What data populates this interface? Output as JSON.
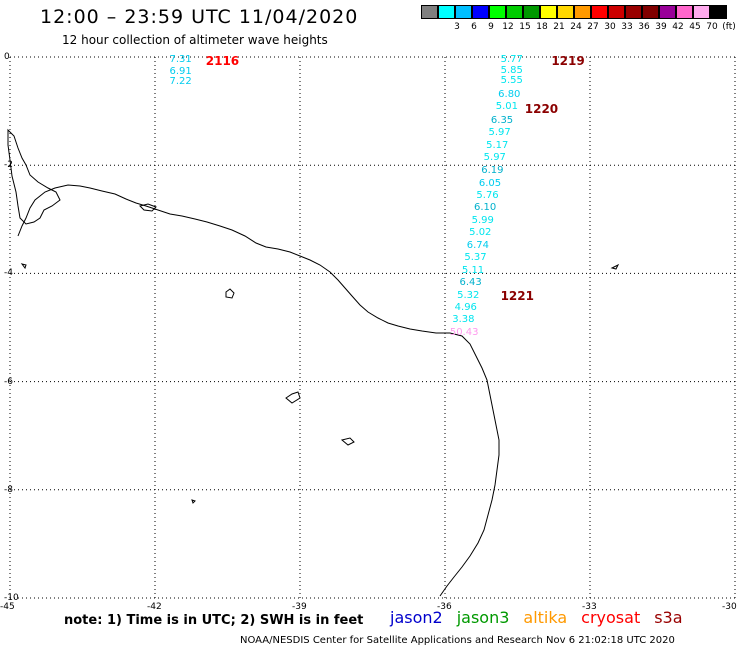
{
  "header": {
    "title": "12:00 – 23:59 UTC 11/04/2020",
    "subtitle": "12 hour collection of altimeter wave heights"
  },
  "legend": {
    "swatches": [
      {
        "color": "#808080",
        "label": ""
      },
      {
        "color": "#00ffff",
        "label": "3"
      },
      {
        "color": "#00bfff",
        "label": "6"
      },
      {
        "color": "#0000ff",
        "label": "9"
      },
      {
        "color": "#00ff00",
        "label": "12"
      },
      {
        "color": "#00cc00",
        "label": "15"
      },
      {
        "color": "#009900",
        "label": "18"
      },
      {
        "color": "#ffff00",
        "label": "21"
      },
      {
        "color": "#ffd700",
        "label": "24"
      },
      {
        "color": "#ff9900",
        "label": "27"
      },
      {
        "color": "#ff0000",
        "label": "30"
      },
      {
        "color": "#cc0000",
        "label": "33"
      },
      {
        "color": "#990000",
        "label": "36"
      },
      {
        "color": "#800000",
        "label": "39"
      },
      {
        "color": "#990099",
        "label": "42"
      },
      {
        "color": "#ff66cc",
        "label": "45"
      },
      {
        "color": "#ffaaee",
        "label": "70"
      },
      {
        "color": "#000000",
        "label": "(ft)"
      }
    ]
  },
  "map": {
    "lon_range": [
      -45,
      -30
    ],
    "lat_range": [
      -10,
      0
    ],
    "lon_ticks": [
      "-45",
      "-42",
      "-39",
      "-36",
      "-33",
      "-30"
    ],
    "lat_ticks": [
      "0",
      "-2",
      "-4",
      "-6",
      "-8",
      "-10"
    ],
    "observations": [
      {
        "value": "7.31",
        "color": "#00ccee",
        "lon": -41.7,
        "lat": -0.05
      },
      {
        "value": "6.91",
        "color": "#00ccee",
        "lon": -41.7,
        "lat": -0.27
      },
      {
        "value": "7.22",
        "color": "#00ccee",
        "lon": -41.7,
        "lat": -0.47
      },
      {
        "value": "5.77",
        "color": "#00e5ee",
        "lon": -34.85,
        "lat": -0.05
      },
      {
        "value": "5.85",
        "color": "#00e5ee",
        "lon": -34.85,
        "lat": -0.25
      },
      {
        "value": "5.55",
        "color": "#00e5ee",
        "lon": -34.85,
        "lat": -0.45
      },
      {
        "value": "6.80",
        "color": "#00ccee",
        "lon": -34.9,
        "lat": -0.7
      },
      {
        "value": "5.01",
        "color": "#00e5ee",
        "lon": -34.95,
        "lat": -0.92
      },
      {
        "value": "6.35",
        "color": "#00b0cc",
        "lon": -35.05,
        "lat": -1.18
      },
      {
        "value": "5.97",
        "color": "#00e5ee",
        "lon": -35.1,
        "lat": -1.4
      },
      {
        "value": "5.17",
        "color": "#00e5ee",
        "lon": -35.15,
        "lat": -1.65
      },
      {
        "value": "5.97",
        "color": "#00e5ee",
        "lon": -35.2,
        "lat": -1.87
      },
      {
        "value": "6.19",
        "color": "#00b0cc",
        "lon": -35.25,
        "lat": -2.1
      },
      {
        "value": "6.05",
        "color": "#00ccee",
        "lon": -35.3,
        "lat": -2.34
      },
      {
        "value": "5.76",
        "color": "#00e5ee",
        "lon": -35.35,
        "lat": -2.57
      },
      {
        "value": "6.10",
        "color": "#00b0cc",
        "lon": -35.4,
        "lat": -2.8
      },
      {
        "value": "5.99",
        "color": "#00e5ee",
        "lon": -35.45,
        "lat": -3.03
      },
      {
        "value": "5.02",
        "color": "#00e5ee",
        "lon": -35.5,
        "lat": -3.26
      },
      {
        "value": "6.74",
        "color": "#00ccee",
        "lon": -35.55,
        "lat": -3.49
      },
      {
        "value": "5.37",
        "color": "#00e5ee",
        "lon": -35.6,
        "lat": -3.72
      },
      {
        "value": "5.11",
        "color": "#00e5ee",
        "lon": -35.65,
        "lat": -3.95
      },
      {
        "value": "6.43",
        "color": "#00b0cc",
        "lon": -35.7,
        "lat": -4.18
      },
      {
        "value": "5.32",
        "color": "#00e5ee",
        "lon": -35.75,
        "lat": -4.41
      },
      {
        "value": "4.96",
        "color": "#00e5ee",
        "lon": -35.8,
        "lat": -4.64
      },
      {
        "value": "3.38",
        "color": "#00e5ee",
        "lon": -35.85,
        "lat": -4.87
      },
      {
        "value": "50.43",
        "color": "#ff99ee",
        "lon": -35.9,
        "lat": -5.1
      }
    ],
    "time_labels": [
      {
        "text": "2116",
        "color": "#ff0000",
        "lon": -40.95,
        "lat": -0.05
      },
      {
        "text": "1219",
        "color": "#8b0000",
        "lon": -33.8,
        "lat": -0.05
      },
      {
        "text": "1220",
        "color": "#8b0000",
        "lon": -34.35,
        "lat": -0.95
      },
      {
        "text": "1221",
        "color": "#8b0000",
        "lon": -34.85,
        "lat": -4.4
      }
    ]
  },
  "footer": {
    "note": "note: 1) Time is in UTC; 2) SWH is in feet",
    "satellites": [
      {
        "name": "jason2",
        "color": "#0000cc"
      },
      {
        "name": "jason3",
        "color": "#009900"
      },
      {
        "name": "altika",
        "color": "#ff9900"
      },
      {
        "name": "cryosat",
        "color": "#ff0000"
      },
      {
        "name": "s3a",
        "color": "#990000"
      }
    ],
    "credit": "NOAA/NESDIS Center for Satellite Applications and Research   Nov  6 21:02:18 UTC 2020"
  }
}
